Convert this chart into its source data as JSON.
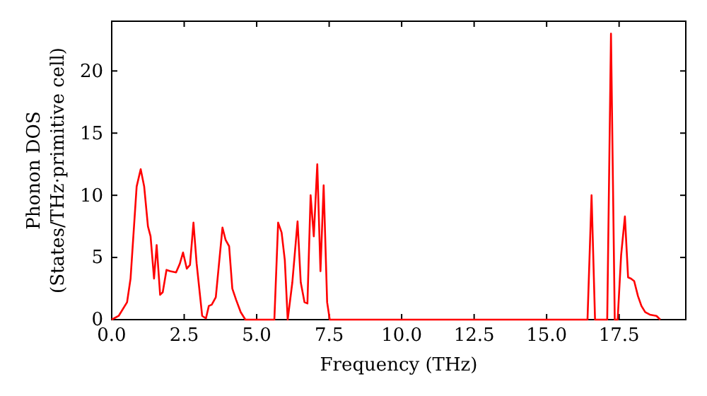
{
  "chart_data": {
    "type": "line",
    "xlabel": "Frequency (THz)",
    "ylabel": "Phonon DOS\n(States/THz·primitive cell)",
    "x": [
      0,
      0.24,
      0.53,
      0.65,
      0.86,
      1.0,
      1.12,
      1.25,
      1.34,
      1.46,
      1.55,
      1.67,
      1.76,
      1.89,
      2.02,
      2.22,
      2.35,
      2.46,
      2.59,
      2.7,
      2.82,
      2.93,
      3.12,
      3.25,
      3.35,
      3.45,
      3.59,
      3.82,
      3.93,
      4.05,
      4.16,
      4.29,
      4.45,
      4.61,
      5.61,
      5.74,
      5.86,
      5.97,
      6.07,
      6.23,
      6.41,
      6.52,
      6.65,
      6.75,
      6.86,
      6.97,
      7.09,
      7.2,
      7.31,
      7.43,
      7.52,
      16.41,
      16.55,
      16.67,
      17.09,
      17.22,
      17.35,
      17.45,
      17.57,
      17.7,
      17.81,
      17.91,
      18.02,
      18.15,
      18.27,
      18.4,
      18.56,
      18.79,
      18.92
    ],
    "series": [
      {
        "color": "#ff0000",
        "values": [
          0,
          0.3,
          1.4,
          3.3,
          10.7,
          12.1,
          10.7,
          7.5,
          6.7,
          3.3,
          6.0,
          2.0,
          2.2,
          4.0,
          3.9,
          3.8,
          4.5,
          5.4,
          4.1,
          4.4,
          7.8,
          4.5,
          0.3,
          0.1,
          1.1,
          1.2,
          1.8,
          7.4,
          6.4,
          5.9,
          2.5,
          1.6,
          0.6,
          0,
          0,
          7.8,
          7.0,
          4.8,
          0,
          3.0,
          7.9,
          3.0,
          1.4,
          1.3,
          10.0,
          6.7,
          12.5,
          3.9,
          10.8,
          1.4,
          0,
          0,
          10.0,
          0,
          0,
          23.0,
          0,
          0,
          5.2,
          8.3,
          3.4,
          3.3,
          3.1,
          1.9,
          1.1,
          0.6,
          0.4,
          0.3,
          0
        ]
      }
    ],
    "xlim": [
      0,
      19.8
    ],
    "ylim": [
      0,
      24
    ],
    "xticks": [
      {
        "value": 0,
        "label": "0.0"
      },
      {
        "value": 2.5,
        "label": "2.5"
      },
      {
        "value": 5,
        "label": "5.0"
      },
      {
        "value": 7.5,
        "label": "7.5"
      },
      {
        "value": 10,
        "label": "10.0"
      },
      {
        "value": 12.5,
        "label": "12.5"
      },
      {
        "value": 15,
        "label": "15.0"
      },
      {
        "value": 17.5,
        "label": "17.5"
      }
    ],
    "yticks": [
      0,
      5,
      10,
      15,
      20
    ],
    "marker": "none",
    "line_style": "solid",
    "grid": false
  }
}
